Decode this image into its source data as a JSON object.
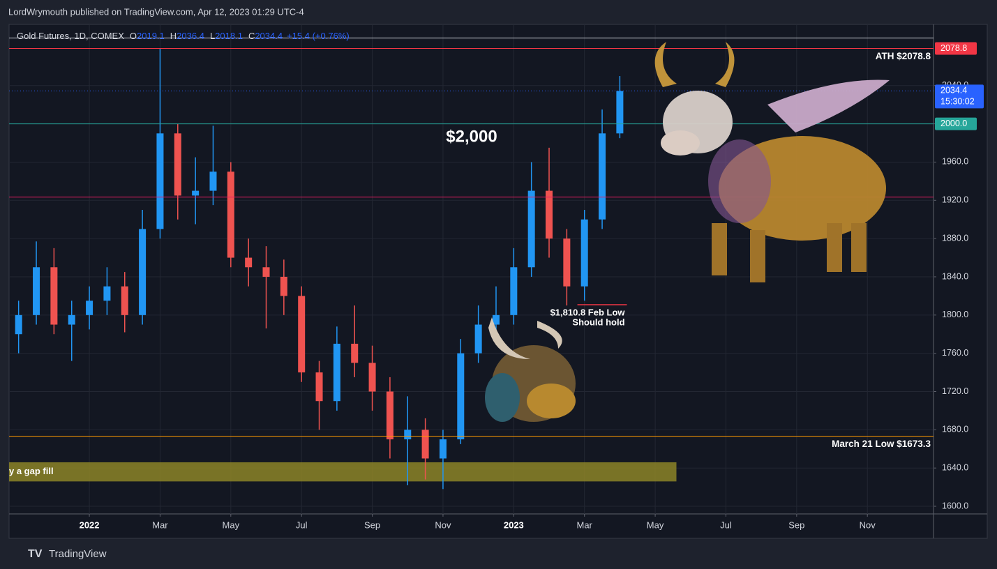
{
  "header": {
    "byline": "LordWrymouth published on TradingView.com, Apr 12, 2023 01:29 UTC-4"
  },
  "footer": {
    "brand": "TradingView"
  },
  "chart_data": {
    "type": "candlestick",
    "legend": {
      "symbol": "Gold Futures, 1D, COMEX",
      "fields": [
        {
          "label": "O",
          "value": 2019.1
        },
        {
          "label": "H",
          "value": 2036.4
        },
        {
          "label": "L",
          "value": 2018.1
        },
        {
          "label": "C",
          "value": 2034.4
        }
      ],
      "change": "+15.4 (+0.76%)"
    },
    "up_color": "#2196f3",
    "down_color": "#ef5350",
    "grid": true,
    "x": [
      -2,
      -1.5,
      -1,
      -0.5,
      0,
      0.5,
      1,
      1.5,
      2,
      2.5,
      3,
      3.5,
      4,
      4.5,
      5,
      5.5,
      6,
      6.5,
      7,
      7.5,
      8,
      8.5,
      9,
      9.5,
      10,
      10.5,
      11,
      11.5,
      12,
      12.5,
      13,
      13.5,
      14,
      14.5,
      15
    ],
    "open": [
      1780,
      1800,
      1850,
      1790,
      1800,
      1815,
      1830,
      1800,
      1890,
      1990,
      1925,
      1930,
      1950,
      1860,
      1850,
      1840,
      1820,
      1740,
      1710,
      1770,
      1750,
      1720,
      1670,
      1680,
      1650,
      1670,
      1760,
      1790,
      1800,
      1850,
      1930,
      1880,
      1830,
      1900,
      1990
    ],
    "high": [
      1815,
      1877,
      1870,
      1815,
      1830,
      1850,
      1845,
      1910,
      2079,
      2000,
      1965,
      1998,
      1960,
      1880,
      1872,
      1858,
      1830,
      1752,
      1788,
      1810,
      1768,
      1735,
      1715,
      1692,
      1680,
      1775,
      1810,
      1830,
      1870,
      1960,
      1975,
      1890,
      1910,
      2015,
      2050
    ],
    "low": [
      1760,
      1790,
      1780,
      1752,
      1785,
      1800,
      1782,
      1790,
      1880,
      1900,
      1895,
      1915,
      1850,
      1830,
      1786,
      1800,
      1730,
      1680,
      1700,
      1735,
      1700,
      1650,
      1622,
      1628,
      1618,
      1665,
      1750,
      1775,
      1790,
      1840,
      1860,
      1810,
      1815,
      1890,
      1985
    ],
    "close": [
      1800,
      1850,
      1790,
      1800,
      1815,
      1830,
      1800,
      1890,
      1990,
      1925,
      1930,
      1950,
      1860,
      1850,
      1840,
      1820,
      1740,
      1710,
      1770,
      1750,
      1720,
      1670,
      1680,
      1650,
      1670,
      1760,
      1790,
      1800,
      1850,
      1930,
      1880,
      1830,
      1900,
      1990,
      2034.4
    ],
    "xlim": [
      -2.27,
      23.87
    ],
    "xticks": [
      {
        "value": 0,
        "label": "2022"
      },
      {
        "value": 2,
        "label": "Mar"
      },
      {
        "value": 4,
        "label": "May"
      },
      {
        "value": 6,
        "label": "Jul"
      },
      {
        "value": 8,
        "label": "Sep"
      },
      {
        "value": 10,
        "label": "Nov"
      },
      {
        "value": 12,
        "label": "2023"
      },
      {
        "value": 14,
        "label": "Mar"
      },
      {
        "value": 16,
        "label": "May"
      },
      {
        "value": 18,
        "label": "Jul"
      },
      {
        "value": 20,
        "label": "Sep"
      },
      {
        "value": 22,
        "label": "Nov"
      }
    ],
    "ylim": [
      1592,
      2104
    ],
    "yticks": [
      {
        "value": 1600,
        "label": "1600.0"
      },
      {
        "value": 1640,
        "label": "1640.0"
      },
      {
        "value": 1680,
        "label": "1680.0"
      },
      {
        "value": 1720,
        "label": "1720.0"
      },
      {
        "value": 1760,
        "label": "1760.0"
      },
      {
        "value": 1800,
        "label": "1800.0"
      },
      {
        "value": 1840,
        "label": "1840.0"
      },
      {
        "value": 1880,
        "label": "1880.0"
      },
      {
        "value": 1920,
        "label": "1920.0"
      },
      {
        "value": 1960,
        "label": "1960.0"
      },
      {
        "value": 2000,
        "label": "2000.0"
      },
      {
        "value": 2040,
        "label": "2040.0"
      }
    ],
    "levels": [
      {
        "value": 2089.8,
        "color": "#d1d4dc"
      },
      {
        "value": 2078.8,
        "color": "#f23645",
        "label": "2078.8",
        "annotation": "ATH $2078.8"
      },
      {
        "value": 2000,
        "color": "#26a69a",
        "label": "2000.0"
      },
      {
        "value": 1923.4,
        "color": "#e91e63"
      },
      {
        "value": 1673.3,
        "color": "#ff9800",
        "annotation": "March 21 Low $1673.3"
      }
    ],
    "current_price": {
      "value": 2034.4,
      "label": "2034.4",
      "countdown": "15:30:02",
      "color": "#2962ff"
    },
    "feb_low": {
      "value": 1810.8,
      "x_range": [
        13.8,
        15.2
      ],
      "color": "#f23645",
      "annotation": [
        "$1,810.8 Feb Low",
        "Should hold"
      ]
    },
    "gap_band": {
      "range": [
        1626,
        1646
      ],
      "x_end": 16.6,
      "color": "#8c8427",
      "annotation": "y a gap fill"
    },
    "callout": "$2,000"
  }
}
